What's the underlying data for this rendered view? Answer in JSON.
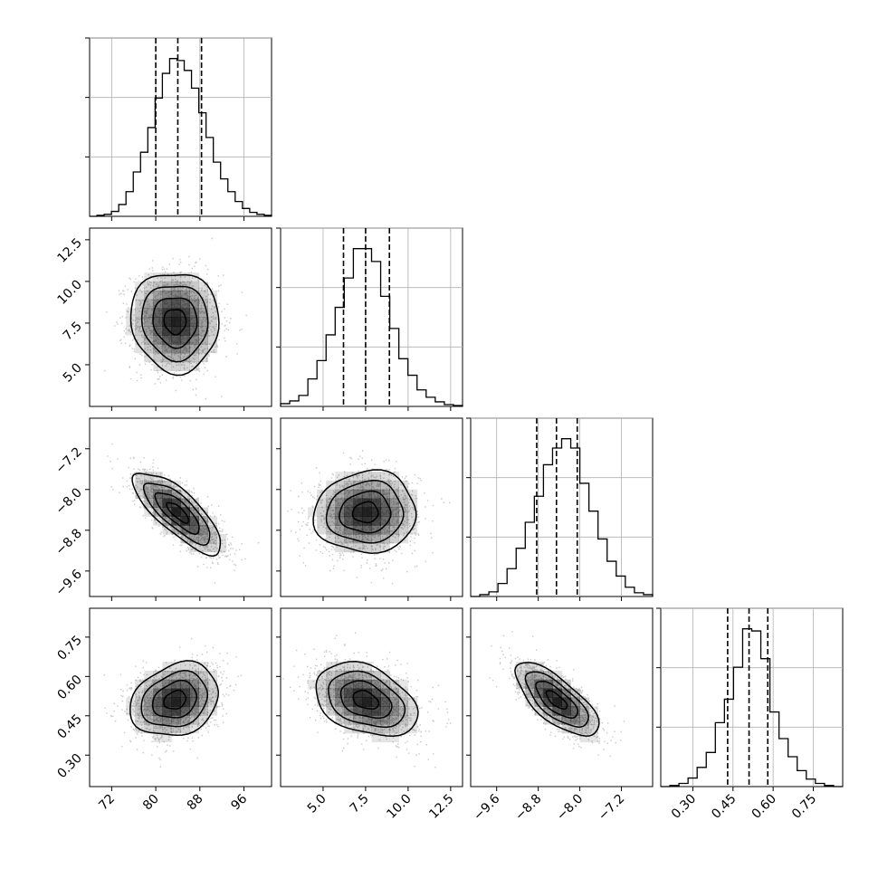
{
  "chart_data": {
    "type": "corner",
    "parameters": [
      {
        "range": [
          68,
          101
        ],
        "ticks": [
          72,
          80,
          88,
          96
        ],
        "tick_labels": [
          "72",
          "80",
          "88",
          "96"
        ],
        "quantiles": [
          80.0,
          84.0,
          88.3
        ],
        "hist": {
          "edges_range": [
            68,
            101
          ],
          "counts": [
            0,
            1,
            2,
            5,
            12,
            25,
            45,
            65,
            90,
            120,
            145,
            160,
            158,
            148,
            130,
            105,
            80,
            55,
            38,
            25,
            15,
            8,
            4,
            2,
            1
          ]
        }
      },
      {
        "range": [
          2.5,
          13.2
        ],
        "ticks": [
          5.0,
          7.5,
          10.0,
          12.5
        ],
        "tick_labels": [
          "5.0",
          "7.5",
          "10.0",
          "12.5"
        ],
        "quantiles": [
          6.2,
          7.5,
          8.9
        ],
        "hist": {
          "edges_range": [
            2.5,
            13.2
          ],
          "counts": [
            3,
            6,
            12,
            30,
            50,
            78,
            108,
            140,
            172,
            172,
            158,
            120,
            85,
            52,
            34,
            18,
            10,
            5,
            2,
            1
          ]
        }
      },
      {
        "range": [
          -10.1,
          -6.6
        ],
        "ticks": [
          -9.6,
          -8.8,
          -8.0,
          -7.2
        ],
        "tick_labels": [
          "−9.6",
          "−8.8",
          "−8.0",
          "−7.2"
        ],
        "quantiles": [
          -8.83,
          -8.45,
          -8.05
        ],
        "hist": {
          "edges_range": [
            -10.1,
            -6.6
          ],
          "counts": [
            0,
            2,
            5,
            14,
            30,
            52,
            80,
            108,
            142,
            160,
            170,
            160,
            122,
            92,
            62,
            38,
            22,
            10,
            4,
            2
          ]
        }
      },
      {
        "range": [
          0.18,
          0.86
        ],
        "ticks": [
          0.3,
          0.45,
          0.6,
          0.75
        ],
        "tick_labels": [
          "0.30",
          "0.45",
          "0.60",
          "0.75"
        ],
        "quantiles": [
          0.43,
          0.51,
          0.58
        ],
        "hist": {
          "edges_range": [
            0.18,
            0.86
          ],
          "counts": [
            0,
            1,
            3,
            8,
            18,
            32,
            60,
            82,
            112,
            148,
            146,
            120,
            70,
            45,
            28,
            15,
            7,
            3,
            1,
            0
          ]
        }
      }
    ],
    "pairs": [
      {
        "row": 1,
        "col": 0,
        "mean": [
          83.5,
          7.6
        ],
        "sd": [
          4.0,
          1.5
        ],
        "rho": -0.05
      },
      {
        "row": 2,
        "col": 0,
        "mean": [
          84.0,
          -8.45
        ],
        "sd": [
          4.0,
          0.4
        ],
        "rho": -0.78
      },
      {
        "row": 2,
        "col": 1,
        "mean": [
          7.5,
          -8.45
        ],
        "sd": [
          1.5,
          0.4
        ],
        "rho": 0.05
      },
      {
        "row": 3,
        "col": 0,
        "mean": [
          83.5,
          0.51
        ],
        "sd": [
          4.0,
          0.07
        ],
        "rho": 0.22
      },
      {
        "row": 3,
        "col": 1,
        "mean": [
          7.5,
          0.51
        ],
        "sd": [
          1.5,
          0.07
        ],
        "rho": -0.35
      },
      {
        "row": 3,
        "col": 2,
        "mean": [
          -8.45,
          0.51
        ],
        "sd": [
          0.4,
          0.07
        ],
        "rho": -0.72
      }
    ],
    "contour_levels_sigma": [
      0.5,
      1.0,
      1.5,
      2.0
    ],
    "grid": true,
    "colors": {
      "line": "#000000",
      "grid": "#b0b0b0",
      "points": "#9a9a9a",
      "density": "#000000"
    }
  }
}
